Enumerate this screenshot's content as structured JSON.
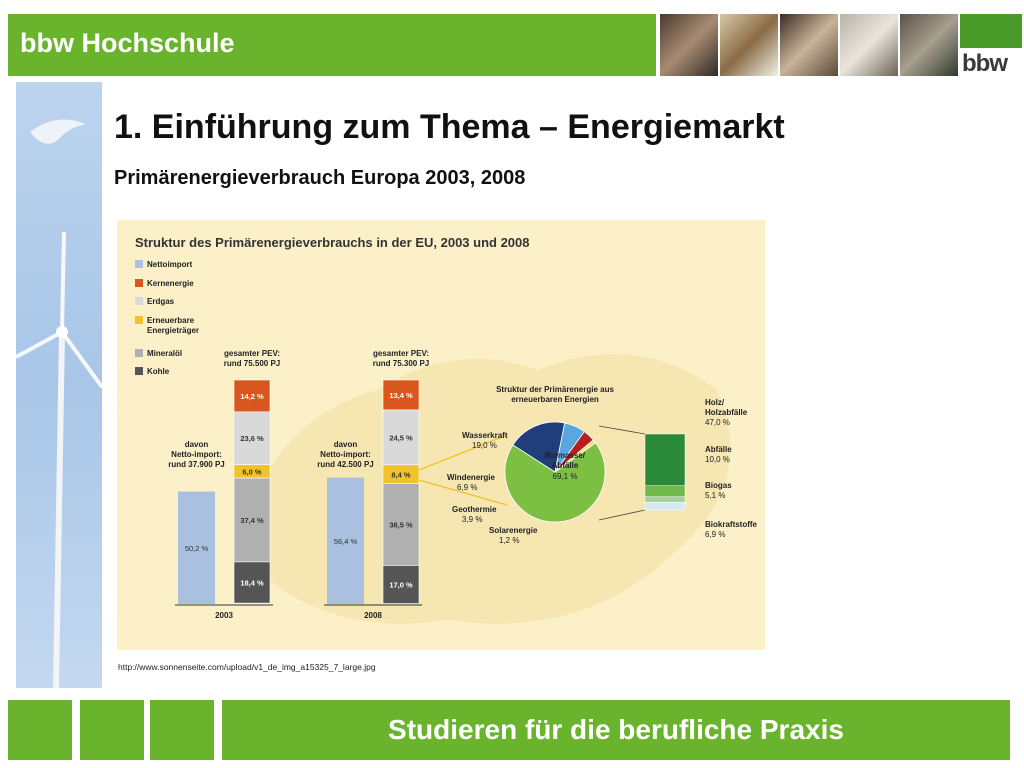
{
  "header": {
    "brand": "bbw Hochschule",
    "logo_text": "bbw"
  },
  "slide": {
    "title": "1. Einführung zum Thema – Energiemarkt",
    "subtitle": "Primärenergieverbrauch Europa 2003, 2008",
    "source": "http://www.sonnenseite.com/upload/v1_de_img_a15325_7_large.jpg"
  },
  "footer": {
    "slogan": "Studieren für die berufliche Praxis"
  },
  "colors": {
    "brand_green": "#6ab42d",
    "netto": "#a9c0e0",
    "kern": "#d9571f",
    "erdgas": "#d9d9d9",
    "erneuerbar": "#f0c22b",
    "mineraloel": "#b0b0b0",
    "kohle": "#555555",
    "pie_biomasse": "#7cbf42",
    "pie_wasser": "#1f3e7a",
    "pie_wind": "#5aa7e0",
    "pie_geo": "#b81f1f",
    "pie_solar": "#f4e07a",
    "holz": "#2a8a3a",
    "abfaelle": "#6fb84a",
    "biogas": "#a8cfa0",
    "biokraft": "#d8e8f0"
  },
  "chart_data": [
    {
      "type": "bar",
      "title": "Struktur des Primärenergieverbrauchs in der EU, 2003 und 2008",
      "legend": [
        "Nettoimport",
        "Kernenergie",
        "Erdgas",
        "Erneuerbare Energieträger",
        "Mineralöl",
        "Kohle"
      ],
      "legend_placement": "left",
      "categories": [
        "2003",
        "2008"
      ],
      "total_labels": [
        [
          "gesamter PEV:",
          "rund 75.500 PJ"
        ],
        [
          "gesamter PEV:",
          "rund 75.300 PJ"
        ]
      ],
      "import_labels": [
        [
          "davon",
          "Netto-import:",
          "rund 37.900 PJ"
        ],
        [
          "davon",
          "Netto-import:",
          "rund 42.500 PJ"
        ]
      ],
      "netto_import_share": [
        50.2,
        56.4
      ],
      "netto_import_labels": [
        "50,2 %",
        "56,4 %"
      ],
      "series": [
        {
          "name": "Kernenergie",
          "values": [
            14.2,
            13.4
          ],
          "labels": [
            "14,2 %",
            "13,4 %"
          ]
        },
        {
          "name": "Erdgas",
          "values": [
            23.6,
            24.5
          ],
          "labels": [
            "23,6 %",
            "24,5 %"
          ]
        },
        {
          "name": "Erneuerbare Energieträger",
          "values": [
            6.0,
            8.4
          ],
          "labels": [
            "6,0 %",
            "8,4 %"
          ]
        },
        {
          "name": "Mineralöl",
          "values": [
            37.4,
            36.5
          ],
          "labels": [
            "37,4 %",
            "36,5 %"
          ]
        },
        {
          "name": "Kohle",
          "values": [
            18.4,
            17.0
          ],
          "labels": [
            "18,4 %",
            "17,0 %"
          ]
        }
      ]
    },
    {
      "type": "pie",
      "title": "Struktur der Primärenergie aus erneuerbaren Energien",
      "slices": [
        {
          "name": "Biomasse/ Abfälle",
          "value": 69.1,
          "label": "69,1 %"
        },
        {
          "name": "Wasserkraft",
          "value": 19.0,
          "label": "19,0 %"
        },
        {
          "name": "Windenergie",
          "value": 6.9,
          "label": "6,9 %"
        },
        {
          "name": "Geothermie",
          "value": 3.9,
          "label": "3,9 %"
        },
        {
          "name": "Solarenergie",
          "value": 1.2,
          "label": "1,2 %"
        }
      ]
    },
    {
      "type": "bar",
      "title": "",
      "categories": [
        "Holz/ Holzabfälle",
        "Abfälle",
        "Biogas",
        "Biokraftstoffe"
      ],
      "values": [
        47.0,
        10.0,
        5.1,
        6.9
      ],
      "labels": [
        "47,0 %",
        "10,0 %",
        "5,1 %",
        "6,9 %"
      ]
    }
  ]
}
